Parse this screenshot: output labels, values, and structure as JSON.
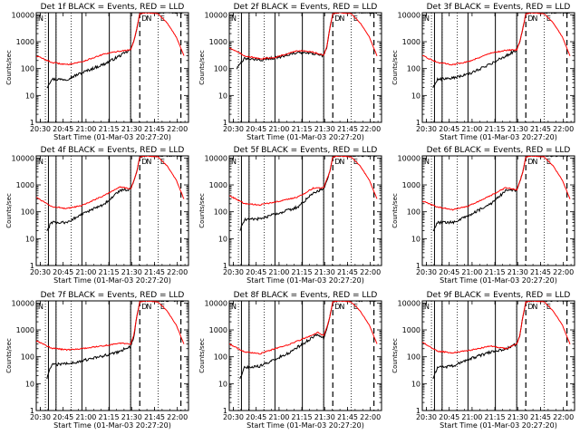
{
  "chart_data": {
    "type": "line",
    "layout": "3x3 grid",
    "shared": {
      "xlabel": "Start Time (01-Mar-03 20:27:20)",
      "ylabel": "Counts/sec",
      "x_ticks": [
        "20:30",
        "20:45",
        "21:00",
        "21:15",
        "21:30",
        "21:45",
        "22:00"
      ],
      "x_tick_minutes": [
        2.67,
        17.67,
        32.67,
        47.67,
        62.67,
        77.67,
        92.67
      ],
      "xlim_minutes": [
        0,
        100
      ],
      "y_scale": "log",
      "ylim": [
        1,
        12000
      ],
      "y_ticks": [
        "1",
        "10",
        "100",
        "1000",
        "10000"
      ],
      "y_tick_values": [
        1,
        10,
        100,
        1000,
        10000
      ],
      "series_names": [
        "Events",
        "LLD"
      ],
      "series_colors": [
        "#000000",
        "#ff0000"
      ],
      "solid_markers_minutes": [
        8,
        13,
        30,
        48,
        62
      ],
      "dotted_markers_minutes": [
        6,
        13,
        23,
        62,
        80
      ],
      "dashed_markers_minutes": [
        68,
        95
      ],
      "range_labels": [
        {
          "text": "N",
          "minute": 3
        },
        {
          "text": "D",
          "minute": 71
        },
        {
          "text": "N",
          "minute": 74
        },
        {
          "text": "E",
          "minute": 83
        }
      ],
      "time_resolution_min": 0.5
    },
    "panels": [
      {
        "title": "Det  1f BLACK = Events, RED = LLD",
        "series": [
          {
            "name": "Events",
            "knots": [
              [
                7,
                20
              ],
              [
                10,
                40
              ],
              [
                20,
                40
              ],
              [
                30,
                70
              ],
              [
                45,
                150
              ],
              [
                55,
                300
              ],
              [
                62,
                500
              ]
            ]
          },
          {
            "name": "LLD",
            "knots": [
              [
                0,
                300
              ],
              [
                10,
                170
              ],
              [
                20,
                140
              ],
              [
                30,
                180
              ],
              [
                45,
                350
              ],
              [
                55,
                450
              ],
              [
                62,
                500
              ]
            ]
          }
        ]
      },
      {
        "title": "Det  2f BLACK = Events, RED = LLD",
        "series": [
          {
            "name": "Events",
            "knots": [
              [
                5,
                100
              ],
              [
                10,
                240
              ],
              [
                20,
                210
              ],
              [
                30,
                250
              ],
              [
                45,
                390
              ],
              [
                55,
                360
              ],
              [
                62,
                300
              ]
            ]
          },
          {
            "name": "LLD",
            "knots": [
              [
                0,
                600
              ],
              [
                10,
                300
              ],
              [
                20,
                230
              ],
              [
                30,
                260
              ],
              [
                45,
                470
              ],
              [
                55,
                410
              ],
              [
                62,
                320
              ]
            ]
          }
        ]
      },
      {
        "title": "Det  3f BLACK = Events, RED = LLD",
        "series": [
          {
            "name": "Events",
            "knots": [
              [
                7,
                20
              ],
              [
                10,
                40
              ],
              [
                20,
                45
              ],
              [
                30,
                60
              ],
              [
                45,
                150
              ],
              [
                55,
                300
              ],
              [
                62,
                500
              ]
            ]
          },
          {
            "name": "LLD",
            "knots": [
              [
                0,
                300
              ],
              [
                10,
                170
              ],
              [
                20,
                140
              ],
              [
                30,
                180
              ],
              [
                45,
                380
              ],
              [
                55,
                480
              ],
              [
                62,
                500
              ]
            ]
          }
        ]
      },
      {
        "title": "Det  4f BLACK = Events, RED = LLD",
        "series": [
          {
            "name": "Events",
            "knots": [
              [
                7,
                20
              ],
              [
                10,
                40
              ],
              [
                20,
                40
              ],
              [
                30,
                80
              ],
              [
                45,
                200
              ],
              [
                55,
                600
              ],
              [
                62,
                700
              ]
            ]
          },
          {
            "name": "LLD",
            "knots": [
              [
                0,
                350
              ],
              [
                10,
                160
              ],
              [
                20,
                130
              ],
              [
                30,
                170
              ],
              [
                45,
                420
              ],
              [
                55,
                850
              ],
              [
                62,
                700
              ]
            ]
          }
        ]
      },
      {
        "title": "Det  5f BLACK = Events, RED = LLD",
        "series": [
          {
            "name": "Events",
            "knots": [
              [
                7,
                20
              ],
              [
                10,
                50
              ],
              [
                20,
                55
              ],
              [
                30,
                80
              ],
              [
                45,
                150
              ],
              [
                55,
                500
              ],
              [
                62,
                700
              ]
            ]
          },
          {
            "name": "LLD",
            "knots": [
              [
                0,
                400
              ],
              [
                10,
                200
              ],
              [
                20,
                180
              ],
              [
                30,
                230
              ],
              [
                45,
                350
              ],
              [
                55,
                750
              ],
              [
                62,
                800
              ]
            ]
          }
        ]
      },
      {
        "title": "Det  6f BLACK = Events, RED = LLD",
        "series": [
          {
            "name": "Events",
            "knots": [
              [
                7,
                20
              ],
              [
                10,
                40
              ],
              [
                20,
                40
              ],
              [
                30,
                70
              ],
              [
                45,
                200
              ],
              [
                55,
                600
              ],
              [
                62,
                650
              ]
            ]
          },
          {
            "name": "LLD",
            "knots": [
              [
                0,
                250
              ],
              [
                10,
                150
              ],
              [
                20,
                120
              ],
              [
                30,
                160
              ],
              [
                45,
                400
              ],
              [
                55,
                800
              ],
              [
                62,
                650
              ]
            ]
          }
        ]
      },
      {
        "title": "Det  7f BLACK = Events, RED = LLD",
        "series": [
          {
            "name": "Events",
            "knots": [
              [
                7,
                15
              ],
              [
                10,
                50
              ],
              [
                20,
                55
              ],
              [
                30,
                70
              ],
              [
                45,
                110
              ],
              [
                55,
                160
              ],
              [
                62,
                250
              ]
            ]
          },
          {
            "name": "LLD",
            "knots": [
              [
                0,
                400
              ],
              [
                10,
                210
              ],
              [
                20,
                180
              ],
              [
                30,
                200
              ],
              [
                45,
                260
              ],
              [
                55,
                320
              ],
              [
                62,
                300
              ]
            ]
          }
        ]
      },
      {
        "title": "Det  8f BLACK = Events, RED = LLD",
        "series": [
          {
            "name": "Events",
            "knots": [
              [
                7,
                15
              ],
              [
                10,
                40
              ],
              [
                20,
                45
              ],
              [
                30,
                80
              ],
              [
                40,
                150
              ],
              [
                50,
                350
              ],
              [
                58,
                700
              ],
              [
                62,
                500
              ]
            ]
          },
          {
            "name": "LLD",
            "knots": [
              [
                0,
                300
              ],
              [
                10,
                150
              ],
              [
                20,
                130
              ],
              [
                30,
                200
              ],
              [
                40,
                300
              ],
              [
                50,
                500
              ],
              [
                58,
                800
              ],
              [
                62,
                600
              ]
            ]
          }
        ]
      },
      {
        "title": "Det  9f BLACK = Events, RED = LLD",
        "series": [
          {
            "name": "Events",
            "knots": [
              [
                7,
                15
              ],
              [
                10,
                40
              ],
              [
                20,
                45
              ],
              [
                30,
                80
              ],
              [
                45,
                150
              ],
              [
                55,
                200
              ],
              [
                62,
                300
              ]
            ]
          },
          {
            "name": "LLD",
            "knots": [
              [
                0,
                350
              ],
              [
                10,
                160
              ],
              [
                20,
                140
              ],
              [
                30,
                170
              ],
              [
                45,
                250
              ],
              [
                55,
                200
              ],
              [
                62,
                300
              ]
            ]
          }
        ]
      }
    ]
  }
}
